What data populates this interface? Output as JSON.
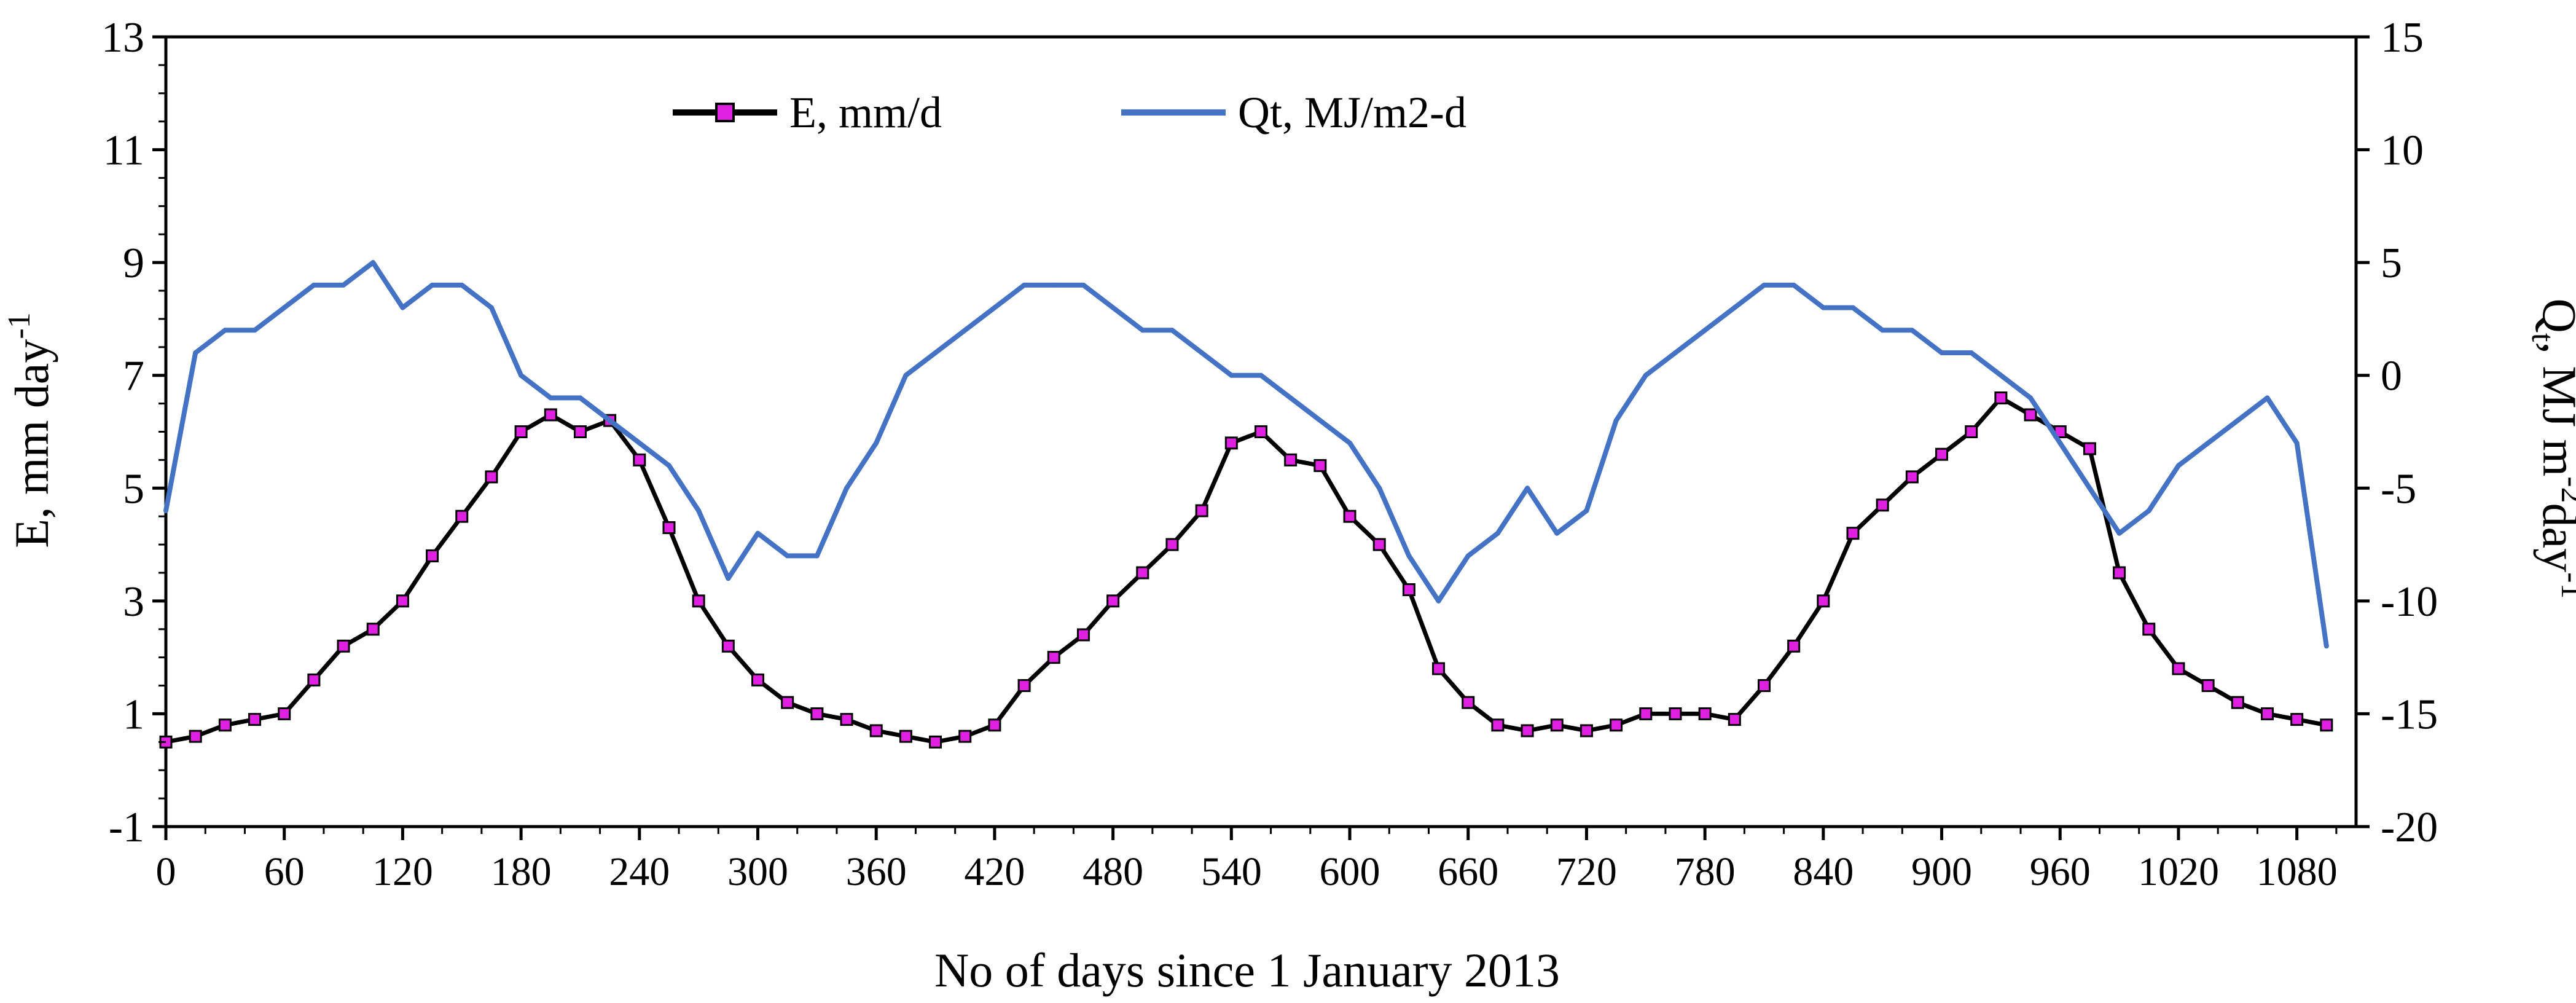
{
  "chart_data": {
    "type": "line",
    "title": "",
    "xlabel": "No of days since 1 January 2013",
    "ylabel_left": {
      "main": "E, mm day",
      "sup": "-1"
    },
    "ylabel_right": {
      "q": "Q",
      "sub": "t",
      "rest1": ", MJ m",
      "sup1": "-2",
      "rest2": "day",
      "sup2": "-1"
    },
    "xlim": [
      0,
      1110
    ],
    "ylim_left": [
      -1,
      13
    ],
    "ylim_right": [
      -20,
      15
    ],
    "x_ticks": [
      0,
      60,
      120,
      180,
      240,
      300,
      360,
      420,
      480,
      540,
      600,
      660,
      720,
      780,
      840,
      900,
      960,
      1020,
      1080
    ],
    "x_tick_labels": [
      "0",
      "60",
      "120",
      "180",
      "240",
      "300",
      "360",
      "420",
      "480",
      "540",
      "600",
      "660",
      "720",
      "780",
      "840",
      "900",
      "960",
      "1020",
      "1080"
    ],
    "y_left_ticks": [
      -1,
      1,
      3,
      5,
      7,
      9,
      11,
      13
    ],
    "y_left_tick_labels": [
      "-1",
      "1",
      "3",
      "5",
      "7",
      "9",
      "11",
      "13"
    ],
    "y_right_ticks": [
      -20,
      -15,
      -10,
      -5,
      0,
      5,
      10,
      15
    ],
    "y_right_tick_labels": [
      "-20",
      "-15",
      "-10",
      "-5",
      "0",
      "5",
      "10",
      "15"
    ],
    "legend_position": "top-center",
    "series": [
      {
        "name": "E, mm/d",
        "axis": "left",
        "color": "#000000",
        "marker_color": "#e020e0",
        "x": [
          0,
          15,
          30,
          45,
          60,
          75,
          90,
          105,
          120,
          135,
          150,
          165,
          180,
          195,
          210,
          225,
          240,
          255,
          270,
          285,
          300,
          315,
          330,
          345,
          360,
          375,
          390,
          405,
          420,
          435,
          450,
          465,
          480,
          495,
          510,
          525,
          540,
          555,
          570,
          585,
          600,
          615,
          630,
          645,
          660,
          675,
          690,
          705,
          720,
          735,
          750,
          765,
          780,
          795,
          810,
          825,
          840,
          855,
          870,
          885,
          900,
          915,
          930,
          945,
          960,
          975,
          990,
          1005,
          1020,
          1035,
          1050,
          1065,
          1080,
          1095
        ],
        "values": [
          0.5,
          0.6,
          0.8,
          0.9,
          1.0,
          1.6,
          2.2,
          2.5,
          3.0,
          3.8,
          4.5,
          5.2,
          6.0,
          6.3,
          6.0,
          6.2,
          5.5,
          4.3,
          3.0,
          2.2,
          1.6,
          1.2,
          1.0,
          0.9,
          0.7,
          0.6,
          0.5,
          0.6,
          0.8,
          1.5,
          2.0,
          2.4,
          3.0,
          3.5,
          4.0,
          4.6,
          5.8,
          6.0,
          5.5,
          5.4,
          4.5,
          4.0,
          3.2,
          1.8,
          1.2,
          0.8,
          0.7,
          0.8,
          0.7,
          0.8,
          1.0,
          1.0,
          1.0,
          0.9,
          1.5,
          2.2,
          3.0,
          4.2,
          4.7,
          5.2,
          5.6,
          6.0,
          6.6,
          6.3,
          6.0,
          5.7,
          3.5,
          2.5,
          1.8,
          1.5,
          1.2,
          1.0,
          0.9,
          0.8
        ]
      },
      {
        "name": "Qt, MJ/m2-d",
        "axis": "right",
        "color": "#4472c4",
        "x": [
          0,
          15,
          30,
          45,
          60,
          75,
          90,
          105,
          120,
          135,
          150,
          165,
          180,
          195,
          210,
          225,
          240,
          255,
          270,
          285,
          300,
          315,
          330,
          345,
          360,
          375,
          390,
          405,
          420,
          435,
          450,
          465,
          480,
          495,
          510,
          525,
          540,
          555,
          570,
          585,
          600,
          615,
          630,
          645,
          660,
          675,
          690,
          705,
          720,
          735,
          750,
          765,
          780,
          795,
          810,
          825,
          840,
          855,
          870,
          885,
          900,
          915,
          930,
          945,
          960,
          975,
          990,
          1005,
          1020,
          1035,
          1050,
          1065,
          1080,
          1095
        ],
        "values": [
          -6,
          1,
          2,
          2,
          3,
          4,
          4,
          5,
          3,
          4,
          4,
          3,
          0,
          -1,
          -1,
          -2,
          -3,
          -4,
          -6,
          -9,
          -7,
          -8,
          -8,
          -5,
          -3,
          0,
          1,
          2,
          3,
          4,
          4,
          4,
          3,
          2,
          2,
          1,
          0,
          0,
          -1,
          -2,
          -3,
          -5,
          -8,
          -10,
          -8,
          -7,
          -5,
          -7,
          -6,
          -2,
          0,
          1,
          2,
          3,
          4,
          4,
          3,
          3,
          2,
          2,
          1,
          1,
          0,
          -1,
          -3,
          -5,
          -7,
          -6,
          -4,
          -3,
          -2,
          -1,
          -3,
          -12
        ]
      }
    ]
  }
}
